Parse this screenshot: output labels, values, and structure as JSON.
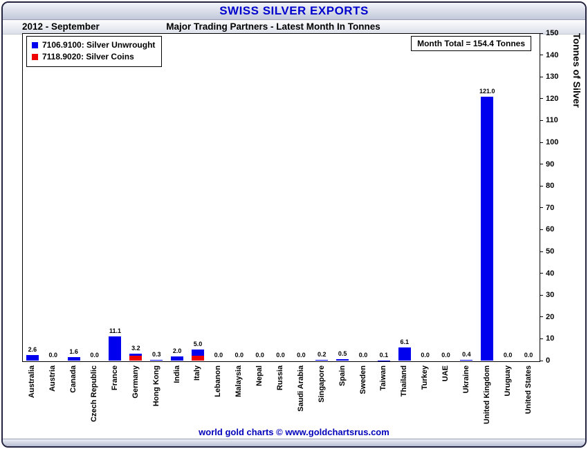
{
  "header": {
    "title": "SWISS SILVER EXPORTS"
  },
  "subheader": {
    "period": "2012 - September",
    "subtitle": "Major Trading Partners - Latest Month In Tonnes"
  },
  "legend": [
    {
      "label": "7106.9100: Silver Unwrought",
      "color": "#0000ee"
    },
    {
      "label": "7118.9020: Silver Coins",
      "color": "#ee0000"
    }
  ],
  "month_total": "Month Total = 154.4 Tonnes",
  "y_axis_title": "Tonnes of Silver",
  "footer": "world gold charts © www.goldchartsrus.com",
  "chart_data": {
    "type": "bar",
    "stacked": true,
    "title": "SWISS SILVER EXPORTS",
    "subtitle": "Major Trading Partners - Latest Month In Tonnes",
    "ylabel": "Tonnes of Silver",
    "ylim": [
      0,
      150
    ],
    "ytick_step": 10,
    "grid": false,
    "legend_position": "top-left",
    "categories": [
      "Australia",
      "Austria",
      "Canada",
      "Czech Republic",
      "France",
      "Germany",
      "Hong Kong",
      "India",
      "Italy",
      "Lebanon",
      "Malaysia",
      "Nepal",
      "Russia",
      "Saudi Arabia",
      "Singapore",
      "Spain",
      "Sweden",
      "Taiwan",
      "Thailand",
      "Turkey",
      "UAE",
      "Ukraine",
      "United Kingdom",
      "Uruguay",
      "United States"
    ],
    "series": [
      {
        "name": "7106.9100: Silver Unwrought",
        "color": "#0000ee",
        "values": [
          2.6,
          0.0,
          1.6,
          0.0,
          11.1,
          1.0,
          0.3,
          2.0,
          2.7,
          0.0,
          0.0,
          0.0,
          0.0,
          0.0,
          0.2,
          0.5,
          0.0,
          0.1,
          6.1,
          0.0,
          0.0,
          0.4,
          121.0,
          0.0,
          0.0
        ]
      },
      {
        "name": "7118.9020: Silver Coins",
        "color": "#ee0000",
        "values": [
          0.0,
          0.0,
          0.0,
          0.0,
          0.0,
          2.2,
          0.0,
          0.0,
          2.3,
          0.0,
          0.0,
          0.0,
          0.0,
          0.0,
          0.0,
          0.0,
          0.0,
          0.0,
          0.0,
          0.0,
          0.0,
          0.0,
          0.0,
          0.0,
          0.0
        ]
      }
    ],
    "totals": [
      2.6,
      0.0,
      1.6,
      0.0,
      11.1,
      3.2,
      0.3,
      2.0,
      5.0,
      0.0,
      0.0,
      0.0,
      0.0,
      0.0,
      0.2,
      0.5,
      0.0,
      0.1,
      6.1,
      0.0,
      0.0,
      0.4,
      121.0,
      0.0,
      0.0
    ],
    "month_total_tonnes": 154.4
  }
}
